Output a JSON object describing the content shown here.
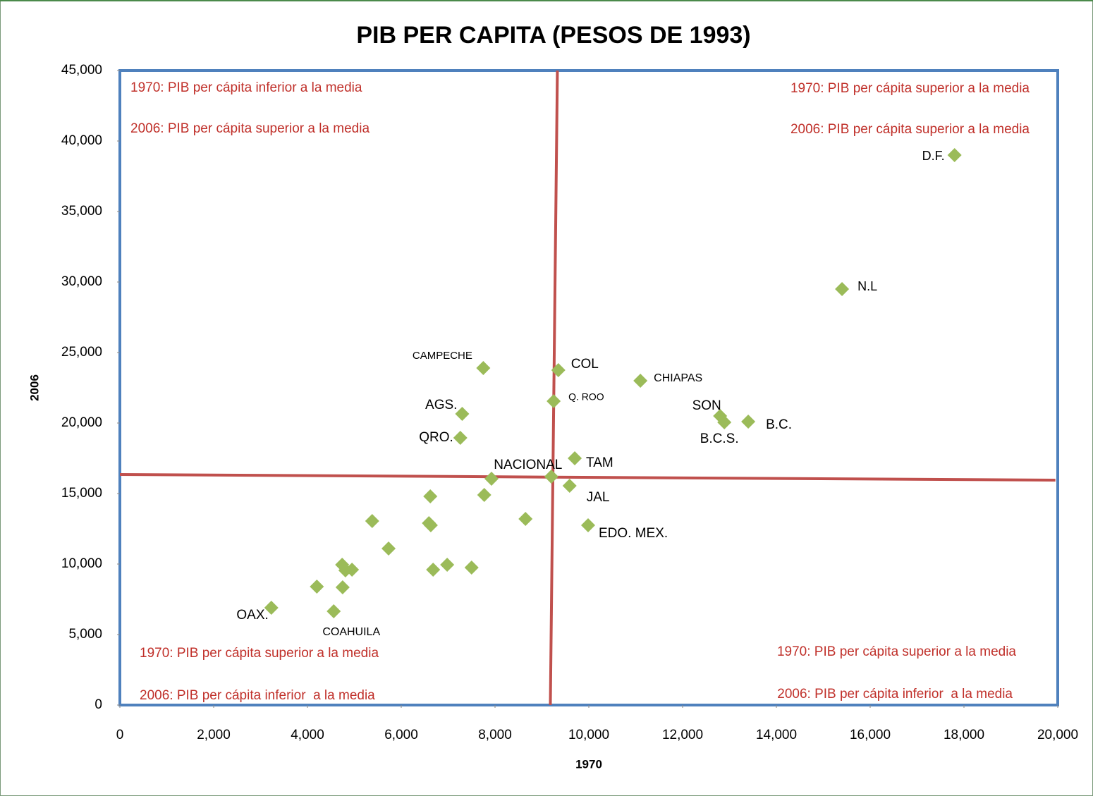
{
  "chart_data": {
    "type": "scatter",
    "title": "PIB PER CAPITA (PESOS DE 1993)",
    "xlabel": "1970",
    "ylabel": "2006",
    "xlim": [
      0,
      20000
    ],
    "ylim": [
      0,
      45000
    ],
    "xticks": [
      0,
      {
        "value": 2000,
        "label": "2,000"
      },
      {
        "value": 4000,
        "label": "4,000"
      },
      {
        "value": 6000,
        "label": "6,000"
      },
      {
        "value": 8000,
        "label": "8,000"
      },
      {
        "value": 10000,
        "label": "10,000"
      },
      {
        "value": 12000,
        "label": "12,000"
      },
      {
        "value": 14000,
        "label": "14,000"
      },
      {
        "value": 16000,
        "label": "16,000"
      },
      {
        "value": 18000,
        "label": "18,000"
      },
      {
        "value": 20000,
        "label": "20,000"
      }
    ],
    "yticks": [
      0,
      {
        "value": 5000,
        "label": "5,000"
      },
      {
        "value": 10000,
        "label": "10,000"
      },
      {
        "value": 15000,
        "label": "15,000"
      },
      {
        "value": 20000,
        "label": "20,000"
      },
      {
        "value": 25000,
        "label": "25,000"
      },
      {
        "value": 30000,
        "label": "30,000"
      },
      {
        "value": 35000,
        "label": "35,000"
      },
      {
        "value": 40000,
        "label": "40,000"
      },
      {
        "value": 45000,
        "label": "45,000"
      }
    ],
    "series": [
      {
        "color": "#9bbb59",
        "x": [
          17800,
          15400,
          7750,
          9350,
          11100,
          9250,
          7300,
          12800,
          12890,
          13400,
          7260,
          9700,
          9200,
          9590,
          9985,
          3230,
          4560,
          7925,
          6620,
          7770,
          5380,
          6590,
          6630,
          8650,
          5730,
          4740,
          4810,
          4950,
          6980,
          6680,
          7500,
          4200,
          4750
        ],
        "values": [
          39000,
          29500,
          23900,
          23750,
          23000,
          21550,
          20650,
          20500,
          20050,
          20100,
          18950,
          17500,
          16200,
          15550,
          12750,
          6900,
          6650,
          16050,
          14800,
          14900,
          13050,
          12900,
          12750,
          13200,
          11100,
          9950,
          9550,
          9600,
          9950,
          9600,
          9750,
          8400,
          8350
        ],
        "point_labels": [
          "D.F.",
          "N.L",
          "CAMPECHE",
          "COL",
          "CHIAPAS",
          "Q. ROO",
          "AGS.",
          "SON",
          "B.C.S.",
          "B.C.",
          "QRO.",
          "TAM",
          "NACIONAL",
          "JAL",
          "EDO. MEX.",
          "OAX.",
          "COAHUILA",
          null,
          null,
          null,
          null,
          null,
          null,
          null,
          null,
          null,
          null,
          null,
          null,
          null,
          null,
          null,
          null
        ]
      }
    ],
    "lines": [
      {
        "color": "#c0504d",
        "x": [
          9330,
          9180
        ],
        "values": [
          45000,
          0
        ]
      },
      {
        "color": "#c0504d",
        "x": [
          0,
          19950
        ],
        "values": [
          16350,
          15950
        ]
      }
    ],
    "annotations": [
      "1970: PIB per cápita inferior a la media",
      "2006: PIB per cápita superior a la media",
      "1970: PIB per cápita superior a la media",
      "2006: PIB per cápita superior a la media",
      "1970: PIB per cápita superior a la media",
      "2006: PIB per cápita inferior  a la media",
      "1970: PIB per cápita superior a la media",
      "2006: PIB per cápita inferior  a la media"
    ],
    "grid": false
  }
}
